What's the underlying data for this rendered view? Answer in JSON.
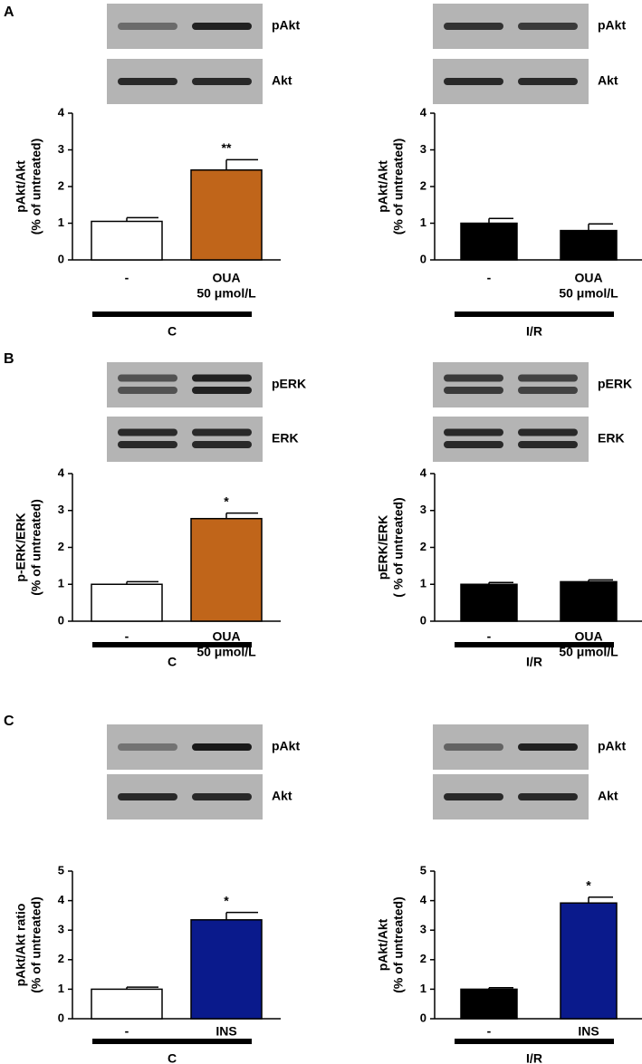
{
  "panels": [
    "A",
    "B",
    "C"
  ],
  "chart_data": [
    {
      "type": "bar",
      "blot_labels": [
        "pAkt",
        "Akt"
      ],
      "y_label": [
        "pAkt/Akt",
        "(% of untreated)"
      ],
      "categories": [
        [
          "-"
        ],
        [
          "OUA",
          "50 μmol/L"
        ]
      ],
      "values": [
        1.05,
        2.45
      ],
      "errors": [
        0.1,
        0.28
      ],
      "colors": [
        "#ffffff",
        "#c0651a"
      ],
      "significance": [
        null,
        "**"
      ],
      "group_label": "C",
      "ylim": [
        0,
        4
      ],
      "yticks": [
        0,
        1,
        2,
        3,
        4
      ]
    },
    {
      "type": "bar",
      "blot_labels": [
        "pAkt",
        "Akt"
      ],
      "y_label": [
        "pAkt/Akt",
        "(% of untreated)"
      ],
      "categories": [
        [
          "-"
        ],
        [
          "OUA",
          "50 μmol/L"
        ]
      ],
      "values": [
        1.0,
        0.8
      ],
      "errors": [
        0.13,
        0.18
      ],
      "colors": [
        "#000000",
        "#000000"
      ],
      "significance": [
        null,
        null
      ],
      "group_label": "I/R",
      "ylim": [
        0,
        4
      ],
      "yticks": [
        0,
        1,
        2,
        3,
        4
      ]
    },
    {
      "type": "bar",
      "blot_labels": [
        "pERK",
        "ERK"
      ],
      "y_label": [
        "p-ERK/ERK",
        "(% of untreated)"
      ],
      "categories": [
        [
          "-"
        ],
        [
          "OUA",
          "50 μmol/L"
        ]
      ],
      "values": [
        1.0,
        2.78
      ],
      "errors": [
        0.07,
        0.15
      ],
      "colors": [
        "#ffffff",
        "#c0651a"
      ],
      "significance": [
        null,
        "*"
      ],
      "group_label": "C",
      "ylim": [
        0,
        4
      ],
      "yticks": [
        0,
        1,
        2,
        3,
        4
      ]
    },
    {
      "type": "bar",
      "blot_labels": [
        "pERK",
        "ERK"
      ],
      "y_label": [
        "pERK/ERK",
        "( % of untreated)"
      ],
      "categories": [
        [
          "-"
        ],
        [
          "OUA",
          "50 μmol/L"
        ]
      ],
      "values": [
        1.0,
        1.07
      ],
      "errors": [
        0.05,
        0.05
      ],
      "colors": [
        "#000000",
        "#000000"
      ],
      "significance": [
        null,
        null
      ],
      "group_label": "I/R",
      "ylim": [
        0,
        4
      ],
      "yticks": [
        0,
        1,
        2,
        3,
        4
      ]
    },
    {
      "type": "bar",
      "blot_labels": [
        "pAkt",
        "Akt"
      ],
      "y_label": [
        "pAkt/Akt ratio",
        "(% of untreated)"
      ],
      "categories": [
        [
          "-"
        ],
        [
          "INS"
        ]
      ],
      "values": [
        1.0,
        3.35
      ],
      "errors": [
        0.07,
        0.25
      ],
      "colors": [
        "#ffffff",
        "#0a1a8c"
      ],
      "significance": [
        null,
        "*"
      ],
      "group_label": "C",
      "ylim": [
        0,
        5
      ],
      "yticks": [
        0,
        1,
        2,
        3,
        4,
        5
      ]
    },
    {
      "type": "bar",
      "blot_labels": [
        "pAkt",
        "Akt"
      ],
      "y_label": [
        "pAkt/Akt",
        "(% of untreated)"
      ],
      "categories": [
        [
          "-"
        ],
        [
          "INS"
        ]
      ],
      "values": [
        1.0,
        3.92
      ],
      "errors": [
        0.05,
        0.2
      ],
      "colors": [
        "#000000",
        "#0a1a8c"
      ],
      "significance": [
        null,
        "*"
      ],
      "group_label": "I/R",
      "ylim": [
        0,
        5
      ],
      "yticks": [
        0,
        1,
        2,
        3,
        4,
        5
      ]
    }
  ]
}
